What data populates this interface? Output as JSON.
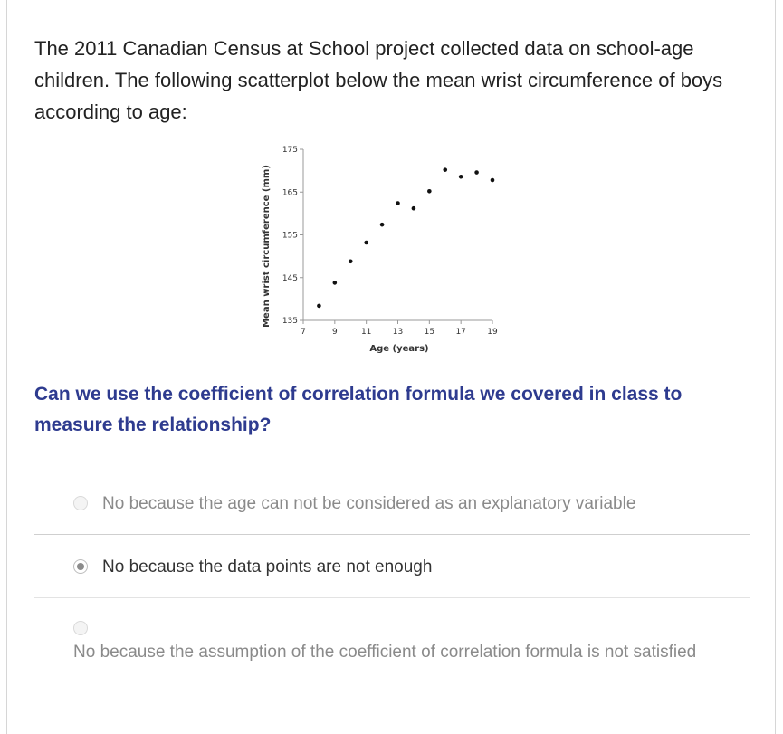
{
  "intro": {
    "text": "The 2011 Canadian Census at School project collected data on school-age children. The following scatterplot below the mean wrist circumference of boys according to age:"
  },
  "chart_data": {
    "type": "scatter",
    "xlabel": "Age (years)",
    "ylabel": "Mean wrist circumference (mm)",
    "xlim": [
      7,
      19
    ],
    "ylim": [
      135,
      175
    ],
    "xticks": [
      7,
      9,
      11,
      13,
      15,
      17,
      19
    ],
    "yticks": [
      135,
      145,
      155,
      165,
      175
    ],
    "points": [
      {
        "x": 8,
        "y": 138.4
      },
      {
        "x": 9,
        "y": 143.8
      },
      {
        "x": 10,
        "y": 148.8
      },
      {
        "x": 11,
        "y": 153.2
      },
      {
        "x": 12,
        "y": 157.4
      },
      {
        "x": 13,
        "y": 162.4
      },
      {
        "x": 14,
        "y": 161.2
      },
      {
        "x": 15,
        "y": 165.2
      },
      {
        "x": 16,
        "y": 170.2
      },
      {
        "x": 17,
        "y": 168.6
      },
      {
        "x": 18,
        "y": 169.6
      },
      {
        "x": 19,
        "y": 167.8
      }
    ]
  },
  "question": {
    "text": "Can we use the coefficient of correlation formula we covered in class to measure the relationship?"
  },
  "options": [
    {
      "label": "No because the age can not be considered as an explanatory variable",
      "selected": false
    },
    {
      "label": "No because the data points are not enough",
      "selected": true
    },
    {
      "label": "No because the assumption of the coefficient of correlation formula is not satisfied",
      "selected": false
    }
  ]
}
